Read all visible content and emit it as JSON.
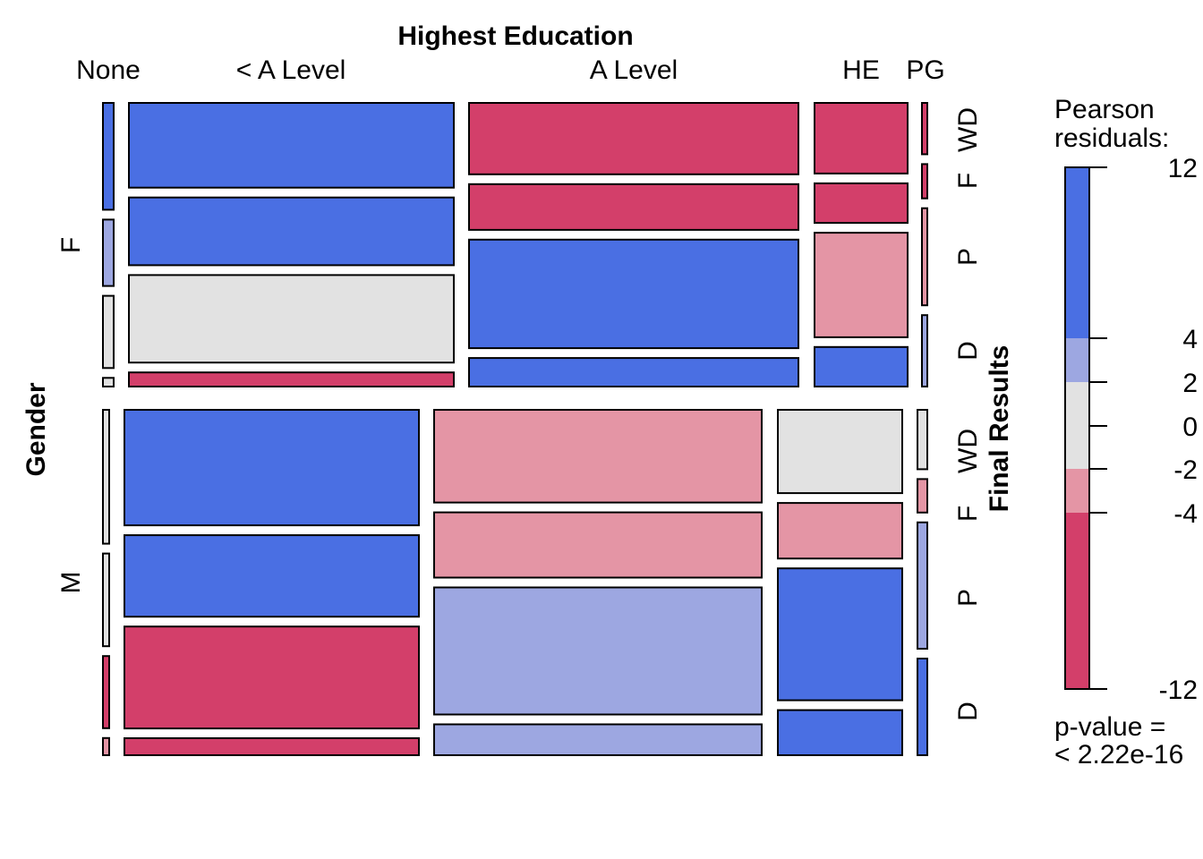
{
  "chart_data": {
    "type": "mosaic",
    "title": "Highest Education",
    "xlabel": "Highest Education",
    "ylabel": "Gender",
    "zlabel": "Final Results",
    "education_levels": [
      "None",
      "< A Level",
      "A Level",
      "HE",
      "PG"
    ],
    "genders": [
      "F",
      "M"
    ],
    "results": [
      "WD",
      "F",
      "P",
      "D"
    ],
    "residual_colors": {
      "strong_positive": "#4a6fe3",
      "moderate_positive": "#9da7e1",
      "neutral": "#e2e2e2",
      "moderate_negative": "#e495a5",
      "strong_negative": "#d33f6a"
    },
    "cells": {
      "F": {
        "None": {
          "proportions": [
            0.37,
            0.23,
            0.25,
            0.03
          ],
          "residual_class": [
            "strong_positive",
            "moderate_positive",
            "neutral",
            "neutral"
          ]
        },
        "< A Level": {
          "proportions": [
            0.3,
            0.24,
            0.31,
            0.05
          ],
          "residual_class": [
            "strong_positive",
            "strong_positive",
            "neutral",
            "strong_negative"
          ]
        },
        "A Level": {
          "proportions": [
            0.25,
            0.16,
            0.38,
            0.1
          ],
          "residual_class": [
            "strong_negative",
            "strong_negative",
            "strong_positive",
            "strong_positive"
          ]
        },
        "HE": {
          "proportions": [
            0.25,
            0.14,
            0.37,
            0.14
          ],
          "residual_class": [
            "strong_negative",
            "strong_negative",
            "moderate_negative",
            "strong_positive"
          ]
        },
        "PG": {
          "proportions": [
            0.18,
            0.12,
            0.34,
            0.25
          ],
          "residual_class": [
            "strong_negative",
            "strong_negative",
            "moderate_negative",
            "moderate_positive"
          ]
        }
      },
      "M": {
        "None": {
          "proportions": [
            0.39,
            0.27,
            0.21,
            0.05
          ],
          "residual_class": [
            "neutral",
            "neutral",
            "strong_negative",
            "moderate_negative"
          ]
        },
        "< A Level": {
          "proportions": [
            0.34,
            0.24,
            0.3,
            0.05
          ],
          "residual_class": [
            "strong_positive",
            "strong_positive",
            "strong_negative",
            "strong_negative"
          ]
        },
        "A Level": {
          "proportions": [
            0.27,
            0.19,
            0.37,
            0.09
          ],
          "residual_class": [
            "moderate_negative",
            "moderate_negative",
            "moderate_positive",
            "moderate_positive"
          ]
        },
        "HE": {
          "proportions": [
            0.24,
            0.16,
            0.38,
            0.13
          ],
          "residual_class": [
            "neutral",
            "moderate_negative",
            "strong_positive",
            "strong_positive"
          ]
        },
        "PG": {
          "proportions": [
            0.16,
            0.09,
            0.34,
            0.26
          ],
          "residual_class": [
            "neutral",
            "moderate_negative",
            "moderate_positive",
            "strong_positive"
          ]
        }
      }
    },
    "legend": {
      "title_line1": "Pearson",
      "title_line2": "residuals:",
      "ticks": [
        "12",
        "4",
        "2",
        "0",
        "-2",
        "-4",
        "-12"
      ],
      "pvalue_line1": "p-value =",
      "pvalue_line2": "< 2.22e-16"
    }
  }
}
